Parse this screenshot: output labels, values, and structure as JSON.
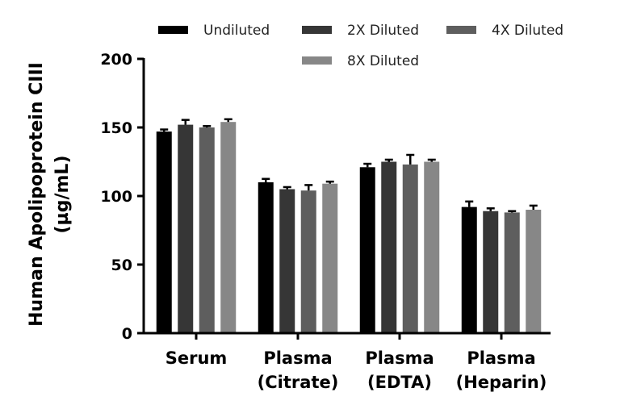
{
  "chart_data": {
    "type": "bar",
    "title": "",
    "xlabel": "",
    "ylabel_lines": [
      "Human Apolipoprotein CIII",
      "(µg/mL)"
    ],
    "ylim": [
      0,
      200
    ],
    "yticks": [
      0,
      50,
      100,
      150,
      200
    ],
    "categories": [
      [
        "Serum"
      ],
      [
        "Plasma",
        "(Citrate)"
      ],
      [
        "Plasma",
        "(EDTA)"
      ],
      [
        "Plasma",
        "(Heparin)"
      ]
    ],
    "legend_position": "top",
    "series": [
      {
        "name": "Undiluted",
        "color": "#000000",
        "values": [
          147,
          110,
          121,
          92
        ],
        "errors": [
          1.5,
          2.5,
          2.5,
          4
        ]
      },
      {
        "name": "2X Diluted",
        "color": "#363636",
        "values": [
          152,
          105,
          125,
          89
        ],
        "errors": [
          3.5,
          1.5,
          1.5,
          2
        ]
      },
      {
        "name": "4X Diluted",
        "color": "#5e5e5e",
        "values": [
          150,
          104,
          123,
          88
        ],
        "errors": [
          1,
          4,
          7,
          1
        ]
      },
      {
        "name": "8X Diluted",
        "color": "#878787",
        "values": [
          154,
          109,
          125,
          90
        ],
        "errors": [
          2,
          1.5,
          1.5,
          3
        ]
      }
    ]
  }
}
